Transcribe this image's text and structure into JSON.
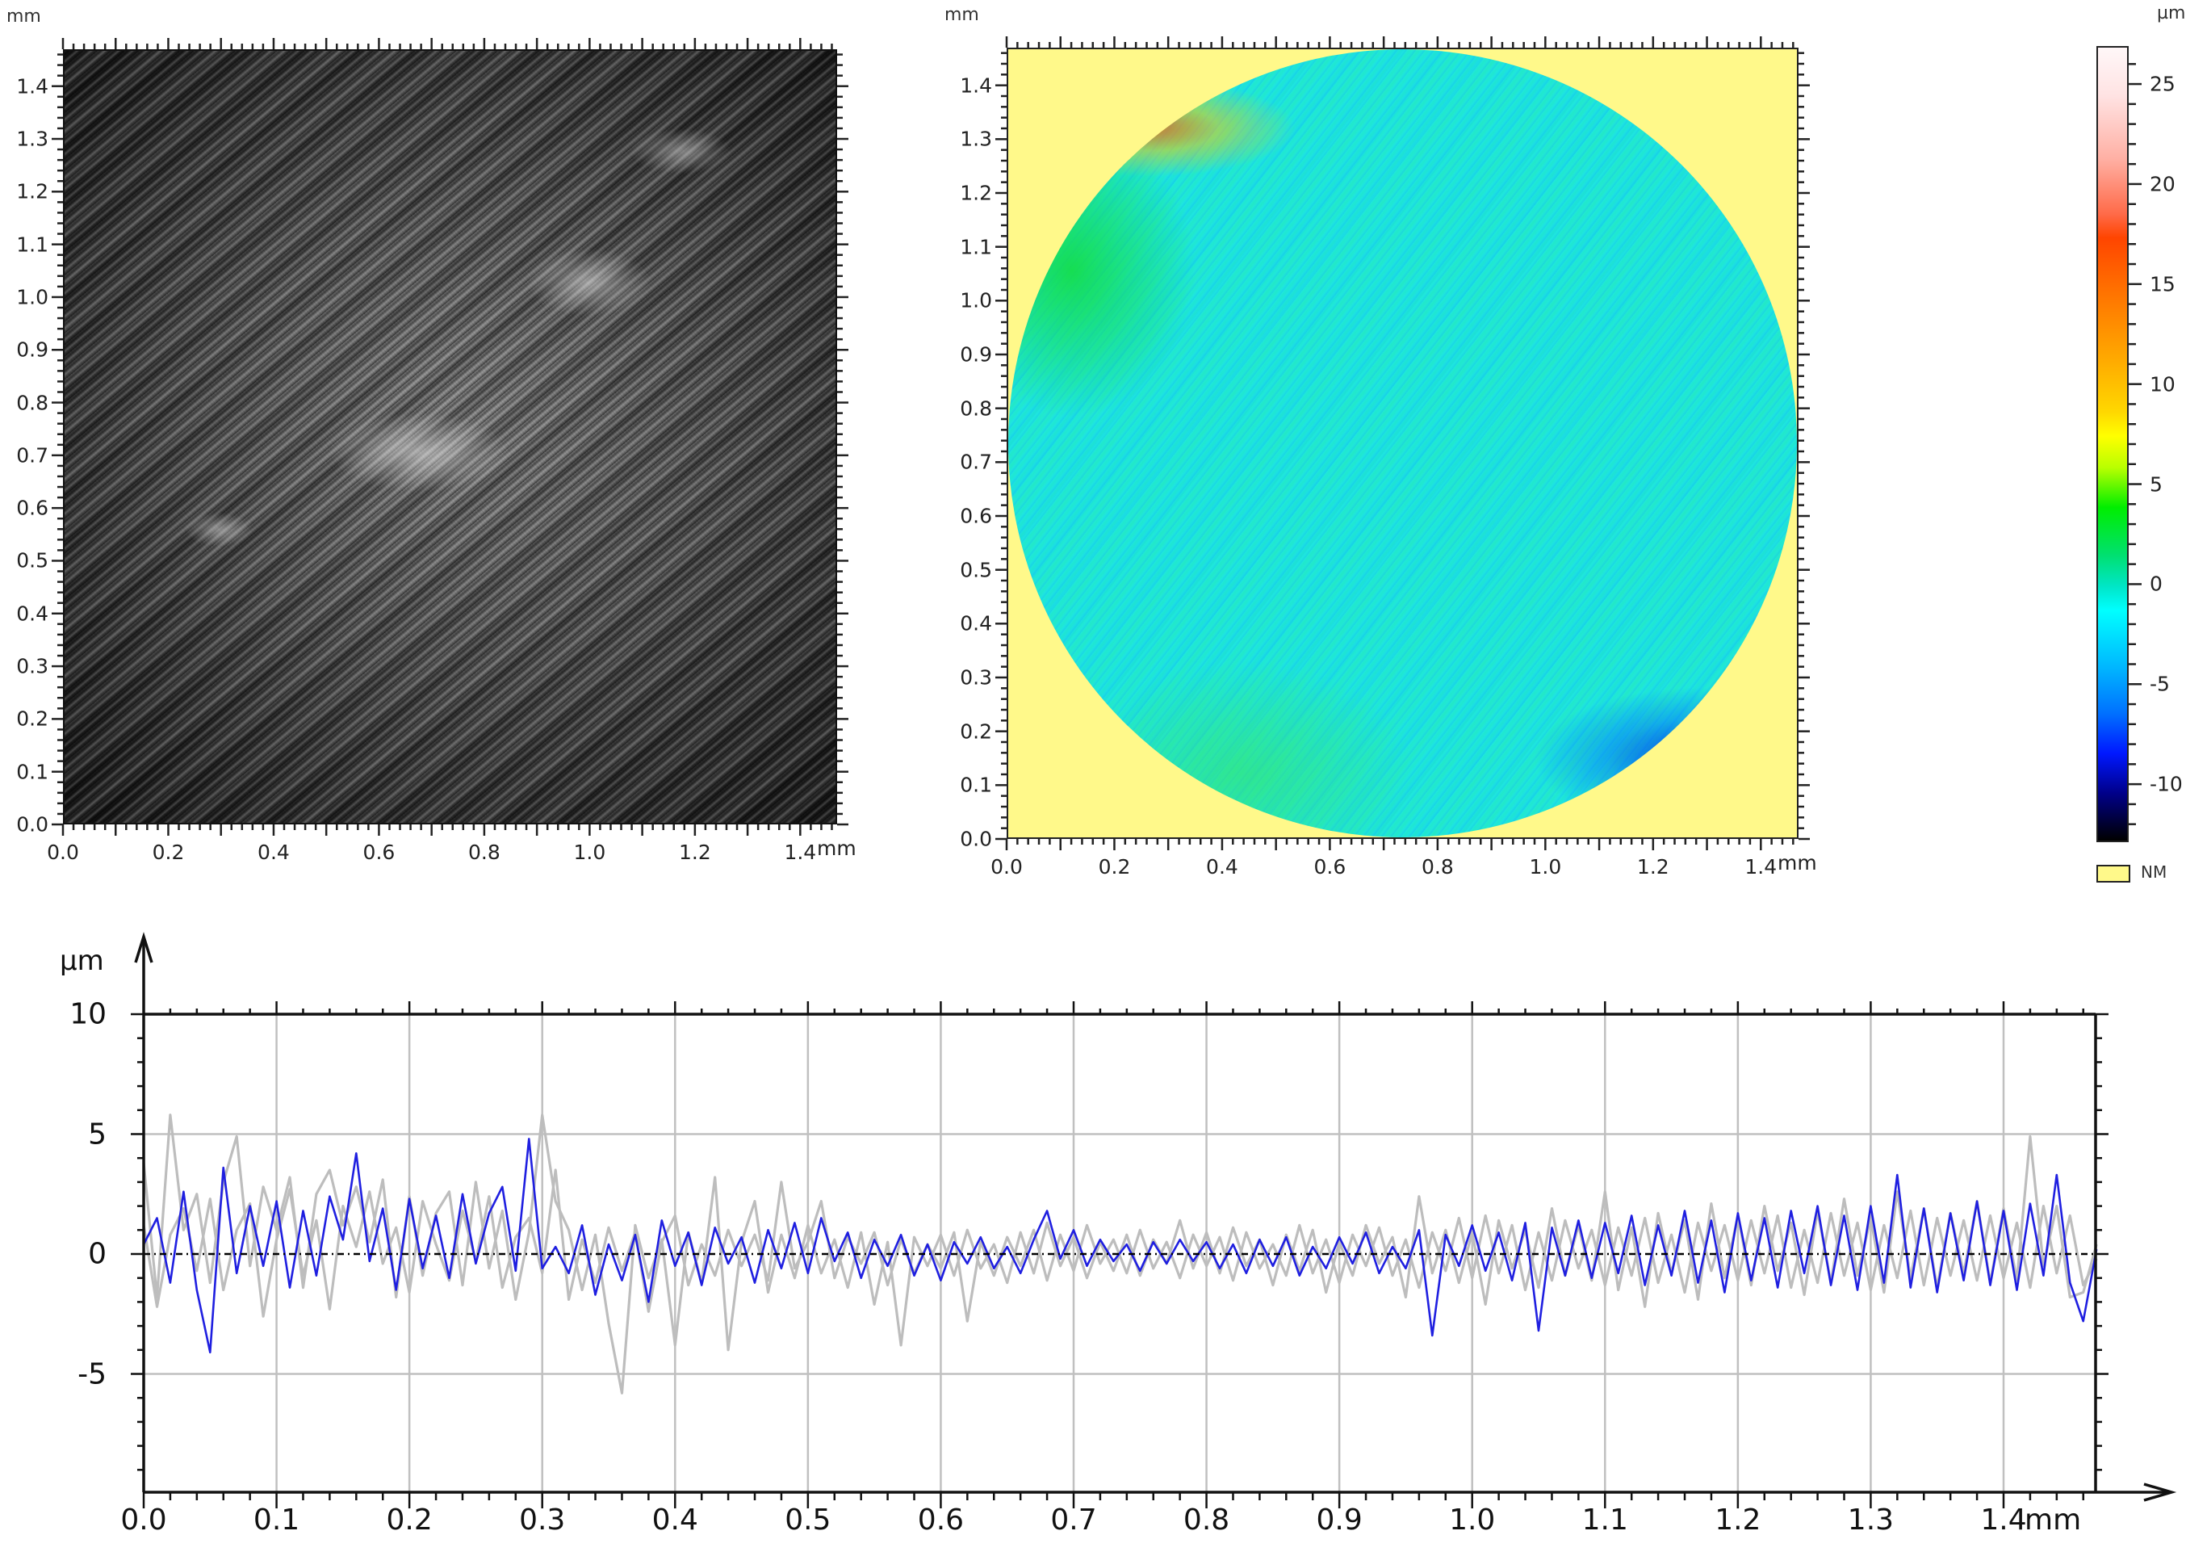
{
  "panels": {
    "intensity_image": {
      "y_unit": "mm",
      "x_unit": "mm",
      "x_ticks": [
        "0.0",
        "0.2",
        "0.4",
        "0.6",
        "0.8",
        "1.0",
        "1.2",
        "1.4"
      ],
      "y_ticks": [
        "0.0",
        "0.1",
        "0.2",
        "0.3",
        "0.4",
        "0.5",
        "0.6",
        "0.7",
        "0.8",
        "0.9",
        "1.0",
        "1.1",
        "1.2",
        "1.3",
        "1.4"
      ],
      "range_mm": [
        0,
        1.47
      ]
    },
    "height_map": {
      "y_unit": "mm",
      "x_unit": "mm",
      "x_ticks": [
        "0.0",
        "0.2",
        "0.4",
        "0.6",
        "0.8",
        "1.0",
        "1.2",
        "1.4"
      ],
      "y_ticks": [
        "0.0",
        "0.1",
        "0.2",
        "0.3",
        "0.4",
        "0.5",
        "0.6",
        "0.7",
        "0.8",
        "0.9",
        "1.0",
        "1.1",
        "1.2",
        "1.3",
        "1.4"
      ],
      "range_mm": [
        0,
        1.47
      ],
      "masked_color": "#fff98a"
    },
    "colorbar": {
      "unit": "µm",
      "ticks": [
        "25",
        "20",
        "15",
        "10",
        "5",
        "0",
        "-5",
        "-10"
      ],
      "tick_values": [
        25,
        20,
        15,
        10,
        5,
        0,
        -5,
        -10
      ],
      "range": [
        -12.9,
        26.9
      ],
      "legend_nm_label": "NM",
      "legend_nm_color": "#fff98a"
    }
  },
  "profile": {
    "y_unit": "µm",
    "x_unit_label": "mm",
    "x_ticks": [
      "0.0",
      "0.1",
      "0.2",
      "0.3",
      "0.4",
      "0.5",
      "0.6",
      "0.7",
      "0.8",
      "0.9",
      "1.0",
      "1.1",
      "1.2",
      "1.3",
      "1.4"
    ],
    "y_ticks": [
      "10",
      "5",
      "0",
      "-5"
    ],
    "colors": {
      "primary": "#1f1fe0",
      "secondary": "#bdbdbd",
      "grid": "#c0c0c0",
      "zero_line": "#000000"
    }
  },
  "chart_data": [
    {
      "type": "heatmap",
      "title": "Intensity image",
      "xlabel": "mm",
      "ylabel": "mm",
      "xlim": [
        0,
        1.47
      ],
      "ylim": [
        0,
        1.47
      ],
      "x_tick_labels": [
        "0.0",
        "0.2",
        "0.4",
        "0.6",
        "0.8",
        "1.0",
        "1.2",
        "1.4"
      ],
      "y_tick_labels": [
        "0.0",
        "0.1",
        "0.2",
        "0.3",
        "0.4",
        "0.5",
        "0.6",
        "0.7",
        "0.8",
        "0.9",
        "1.0",
        "1.1",
        "1.2",
        "1.3",
        "1.4"
      ],
      "colormap": "grayscale",
      "description": "Grayscale surface texture with diagonal wear streaks from lower-left to upper-right; brighter patches near center"
    },
    {
      "type": "heatmap",
      "title": "Height map (circular measured area)",
      "xlabel": "mm",
      "ylabel": "mm",
      "xlim": [
        0,
        1.47
      ],
      "ylim": [
        0,
        1.47
      ],
      "x_tick_labels": [
        "0.0",
        "0.2",
        "0.4",
        "0.6",
        "0.8",
        "1.0",
        "1.2",
        "1.4"
      ],
      "y_tick_labels": [
        "0.0",
        "0.1",
        "0.2",
        "0.3",
        "0.4",
        "0.5",
        "0.6",
        "0.7",
        "0.8",
        "0.9",
        "1.0",
        "1.1",
        "1.2",
        "1.3",
        "1.4"
      ],
      "colorbar": {
        "unit": "µm",
        "range": [
          -12.9,
          26.9
        ],
        "ticks": [
          25,
          20,
          15,
          10,
          5,
          0,
          -5,
          -10
        ]
      },
      "legend": [
        {
          "label": "NM",
          "color": "#fff98a"
        }
      ],
      "description": "Mostly near 0 µm (cyan); green/orange raised rim at upper-left edge; blue depressions (~-10 µm) at lower-right edge; corners outside circle are NM (not measured)"
    },
    {
      "type": "line",
      "title": "Profile",
      "xlabel": "mm",
      "ylabel": "µm",
      "xlim": [
        0,
        1.47
      ],
      "ylim": [
        -10,
        10
      ],
      "grid": true,
      "x_tick_labels": [
        "0.0",
        "0.1",
        "0.2",
        "0.3",
        "0.4",
        "0.5",
        "0.6",
        "0.7",
        "0.8",
        "0.9",
        "1.0",
        "1.1",
        "1.2",
        "1.3",
        "1.4"
      ],
      "y_tick_labels": [
        "10",
        "5",
        "0",
        "-5"
      ],
      "x_step": 0.01,
      "series": [
        {
          "name": "profile-gray-1",
          "color": "#bdbdbd",
          "values": [
            3.8,
            -1.8,
            5.8,
            1.0,
            2.5,
            -1.2,
            3.0,
            4.9,
            -0.5,
            2.8,
            1.0,
            3.2,
            -1.4,
            2.5,
            3.5,
            1.2,
            2.8,
            0.5,
            3.1,
            -1.8,
            2.4,
            -0.9,
            1.7,
            2.6,
            -1.3,
            3.0,
            -0.6,
            1.8,
            -1.9,
            0.9,
            5.8,
            2.2,
            1.0,
            -1.5,
            0.8,
            -2.9,
            -5.8,
            1.2,
            -1.0,
            0.6,
            -3.8,
            0.9,
            -1.2,
            3.2,
            -4.0,
            0.5,
            2.2,
            -1.6,
            0.8,
            -1.0,
            1.2,
            -0.8,
            0.6,
            -1.4,
            0.9,
            -2.1,
            0.5,
            -3.8,
            0.7,
            -0.5,
            0.8,
            -0.9,
            1.0,
            -0.6,
            0.4,
            -1.2,
            0.9,
            -0.8,
            1.3,
            -0.5,
            0.7,
            -1.0,
            0.5,
            -0.7,
            0.8,
            -0.9,
            0.6,
            -0.4,
            1.4,
            -0.6,
            0.9,
            -0.8,
            1.1,
            -0.5,
            0.6,
            -1.3,
            0.8,
            -0.7,
            1.0,
            -1.6,
            0.5,
            -0.9,
            1.2,
            -0.4,
            0.7,
            -1.8,
            2.4,
            -0.8,
            1.0,
            -1.2,
            0.9,
            -2.1,
            1.4,
            -0.6,
            1.0,
            -1.4,
            1.9,
            -0.9,
            1.2,
            -1.1,
            2.6,
            -1.5,
            1.1,
            -2.2,
            1.7,
            -0.8,
            1.4,
            -1.9,
            2.1,
            -1.0,
            1.6,
            -1.3,
            2.0,
            -0.7,
            1.3,
            -1.7,
            1.8,
            -1.2,
            2.3,
            -0.9,
            1.5,
            -1.6,
            2.6,
            -1.0,
            1.9,
            -1.4,
            1.7,
            -0.8,
            2.2,
            -1.2,
            1.9,
            -1.1,
            4.9,
            -0.5,
            2.0,
            -1.8,
            -1.6,
            0.4
          ]
        },
        {
          "name": "profile-gray-2",
          "color": "#bdbdbd",
          "values": [
            1.2,
            -2.2,
            0.8,
            1.9,
            -0.7,
            2.3,
            -1.5,
            1.0,
            2.1,
            -2.6,
            0.6,
            2.7,
            -0.9,
            1.4,
            -2.3,
            2.0,
            0.3,
            2.6,
            -0.4,
            1.1,
            -1.6,
            2.2,
            0.4,
            -1.1,
            1.8,
            -0.3,
            2.4,
            -1.4,
            0.7,
            1.5,
            -0.8,
            3.5,
            -1.9,
            0.6,
            -1.2,
            1.1,
            -0.7,
            0.9,
            -2.4,
            0.5,
            1.6,
            -1.3,
            0.4,
            -0.9,
            1.0,
            -0.5,
            0.8,
            -1.1,
            3.0,
            -0.6,
            0.5,
            2.2,
            -1.0,
            0.7,
            -0.4,
            0.9,
            -1.3,
            0.6,
            -0.8,
            0.4,
            -0.6,
            0.9,
            -2.8,
            0.5,
            -0.9,
            0.7,
            -0.5,
            1.0,
            -1.1,
            0.8,
            -0.7,
            1.2,
            -0.4,
            0.6,
            -0.8,
            1.0,
            -0.6,
            0.5,
            -1.0,
            0.8,
            -0.5,
            0.7,
            -1.1,
            0.9,
            -0.6,
            0.4,
            -0.9,
            1.2,
            -0.8,
            0.6,
            -1.2,
            0.8,
            -0.5,
            1.1,
            -0.9,
            0.6,
            -1.4,
            0.9,
            -0.7,
            1.5,
            -1.0,
            1.6,
            -0.8,
            1.2,
            -1.5,
            0.9,
            -1.1,
            1.4,
            -0.6,
            1.0,
            -1.3,
            1.1,
            -0.9,
            1.5,
            -1.2,
            0.8,
            -1.6,
            1.3,
            -0.7,
            1.2,
            -1.1,
            1.4,
            -0.8,
            1.6,
            -1.4,
            1.0,
            -1.2,
            1.7,
            -0.9,
            1.3,
            -1.5,
            1.2,
            -1.0,
            1.8,
            -1.3,
            1.5,
            -0.9,
            1.4,
            -1.1,
            1.6,
            -1.0,
            1.3,
            -1.4,
            2.0,
            -0.8,
            1.6,
            -1.3,
            -0.2
          ]
        },
        {
          "name": "profile-blue",
          "color": "#1f1fe0",
          "values": [
            0.4,
            1.5,
            -1.2,
            2.6,
            -1.5,
            -4.1,
            3.6,
            -0.8,
            2.0,
            -0.5,
            2.2,
            -1.4,
            1.8,
            -0.9,
            2.4,
            0.6,
            4.2,
            -0.3,
            1.9,
            -1.5,
            2.3,
            -0.6,
            1.6,
            -1.0,
            2.5,
            -0.4,
            1.7,
            2.8,
            -0.7,
            4.8,
            -0.6,
            0.3,
            -0.8,
            1.2,
            -1.7,
            0.4,
            -1.1,
            0.8,
            -2.0,
            1.4,
            -0.5,
            0.9,
            -1.3,
            1.1,
            -0.4,
            0.7,
            -1.2,
            1.0,
            -0.6,
            1.3,
            -0.8,
            1.5,
            -0.3,
            0.9,
            -1.0,
            0.6,
            -0.5,
            0.8,
            -0.9,
            0.4,
            -1.1,
            0.5,
            -0.4,
            0.7,
            -0.6,
            0.3,
            -0.8,
            0.6,
            1.8,
            -0.2,
            1.0,
            -0.5,
            0.6,
            -0.3,
            0.4,
            -0.7,
            0.5,
            -0.4,
            0.6,
            -0.3,
            0.5,
            -0.6,
            0.4,
            -0.8,
            0.6,
            -0.5,
            0.7,
            -0.9,
            0.3,
            -0.6,
            0.7,
            -0.4,
            0.9,
            -0.8,
            0.3,
            -0.6,
            1.0,
            -3.4,
            0.8,
            -0.5,
            1.2,
            -0.7,
            0.9,
            -1.1,
            1.3,
            -3.2,
            1.1,
            -0.9,
            1.4,
            -1.0,
            1.3,
            -0.8,
            1.6,
            -1.3,
            1.2,
            -0.9,
            1.8,
            -1.2,
            1.4,
            -1.6,
            1.7,
            -1.1,
            1.5,
            -1.4,
            1.8,
            -0.8,
            2.0,
            -1.3,
            1.6,
            -1.5,
            2.0,
            -1.2,
            3.3,
            -1.4,
            1.9,
            -1.6,
            1.7,
            -1.1,
            2.2,
            -1.3,
            1.8,
            -1.5,
            2.1,
            -0.9,
            3.3,
            -1.2,
            -2.8,
            0.2
          ]
        }
      ]
    }
  ]
}
